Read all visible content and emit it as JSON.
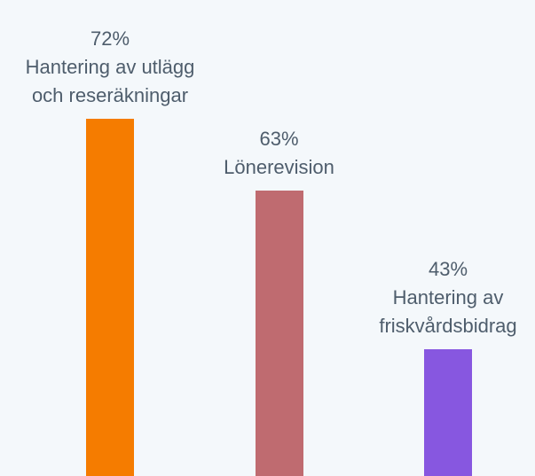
{
  "chart_data": {
    "type": "bar",
    "categories": [
      "Hantering av utlägg och reseräkningar",
      "Lönerevision",
      "Hantering av friskvårdsbidrag"
    ],
    "values": [
      72,
      63,
      43
    ],
    "value_labels": [
      "72%",
      "63%",
      "43%"
    ],
    "colors": [
      "#f57c00",
      "#bf6b70",
      "#8757e0"
    ],
    "ylim": [
      27,
      72
    ]
  }
}
